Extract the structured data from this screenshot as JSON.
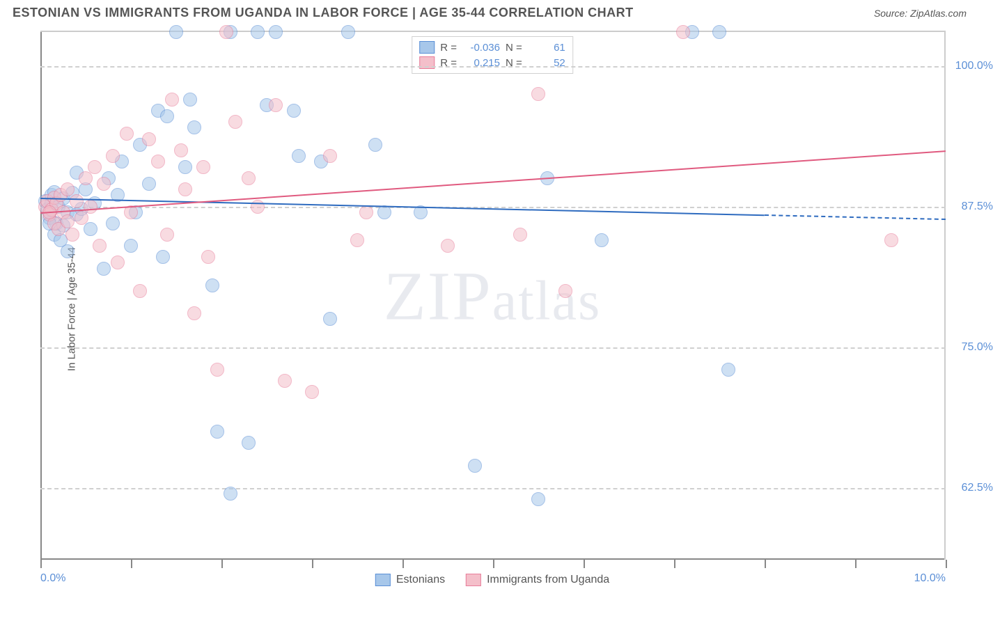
{
  "title": "ESTONIAN VS IMMIGRANTS FROM UGANDA IN LABOR FORCE | AGE 35-44 CORRELATION CHART",
  "source_label": "Source: ZipAtlas.com",
  "ylabel": "In Labor Force | Age 35-44",
  "watermark": "ZIPatlas",
  "chart": {
    "type": "scatter",
    "background_color": "#ffffff",
    "grid_color": "#d0d0d0",
    "axis_color": "#888888",
    "border_color": "#cccccc",
    "xlim": [
      0,
      10
    ],
    "ylim": [
      56,
      103
    ],
    "xticks": [
      0,
      1,
      2,
      3,
      4,
      5,
      6,
      7,
      8,
      9,
      10
    ],
    "xlabel_start": "0.0%",
    "xlabel_end": "10.0%",
    "yticks": [
      {
        "v": 62.5,
        "label": "62.5%"
      },
      {
        "v": 75.0,
        "label": "75.0%"
      },
      {
        "v": 87.5,
        "label": "87.5%"
      },
      {
        "v": 100.0,
        "label": "100.0%"
      }
    ],
    "tick_label_color": "#5b8fd6",
    "label_fontsize": 16,
    "marker_radius": 10,
    "marker_opacity": 0.55,
    "series": [
      {
        "name": "Estonians",
        "color_fill": "#a7c7ea",
        "color_stroke": "#5b8fd6",
        "R_label": "R =",
        "R": "-0.036",
        "N_label": "N =",
        "N": "61",
        "trend": {
          "x0": 0.0,
          "y0": 88.3,
          "x1": 8.0,
          "y1": 86.8,
          "color": "#2e6bbf",
          "dash_to": 10.0
        },
        "points": [
          [
            0.05,
            88.0
          ],
          [
            0.08,
            87.2
          ],
          [
            0.1,
            86.5
          ],
          [
            0.12,
            87.8
          ],
          [
            0.12,
            88.5
          ],
          [
            0.15,
            85.0
          ],
          [
            0.15,
            88.8
          ],
          [
            0.18,
            86.0
          ],
          [
            0.2,
            87.5
          ],
          [
            0.22,
            84.5
          ],
          [
            0.25,
            88.2
          ],
          [
            0.25,
            85.8
          ],
          [
            0.3,
            87.0
          ],
          [
            0.3,
            83.5
          ],
          [
            0.35,
            88.7
          ],
          [
            0.4,
            86.8
          ],
          [
            0.4,
            90.5
          ],
          [
            0.45,
            87.3
          ],
          [
            0.5,
            89.0
          ],
          [
            0.55,
            85.5
          ],
          [
            0.6,
            87.8
          ],
          [
            0.7,
            82.0
          ],
          [
            0.75,
            90.0
          ],
          [
            0.8,
            86.0
          ],
          [
            0.85,
            88.5
          ],
          [
            0.9,
            91.5
          ],
          [
            1.0,
            84.0
          ],
          [
            1.05,
            87.0
          ],
          [
            1.1,
            93.0
          ],
          [
            1.2,
            89.5
          ],
          [
            1.3,
            96.0
          ],
          [
            1.35,
            83.0
          ],
          [
            1.4,
            95.5
          ],
          [
            1.5,
            103.0
          ],
          [
            1.6,
            91.0
          ],
          [
            1.65,
            97.0
          ],
          [
            1.7,
            94.5
          ],
          [
            1.9,
            80.5
          ],
          [
            1.95,
            67.5
          ],
          [
            2.1,
            103.0
          ],
          [
            2.1,
            62.0
          ],
          [
            2.3,
            66.5
          ],
          [
            2.4,
            103.0
          ],
          [
            2.5,
            96.5
          ],
          [
            2.6,
            103.0
          ],
          [
            2.8,
            96.0
          ],
          [
            2.85,
            92.0
          ],
          [
            3.1,
            91.5
          ],
          [
            3.2,
            77.5
          ],
          [
            3.4,
            103.0
          ],
          [
            3.7,
            93.0
          ],
          [
            3.8,
            87.0
          ],
          [
            4.2,
            87.0
          ],
          [
            4.8,
            64.5
          ],
          [
            5.5,
            61.5
          ],
          [
            5.6,
            90.0
          ],
          [
            6.2,
            84.5
          ],
          [
            7.2,
            103.0
          ],
          [
            7.6,
            73.0
          ],
          [
            7.5,
            103.0
          ],
          [
            0.1,
            86.0
          ]
        ]
      },
      {
        "name": "Immigrants from Uganda",
        "color_fill": "#f4bfca",
        "color_stroke": "#e87d9a",
        "R_label": "R =",
        "R": "0.215",
        "N_label": "N =",
        "N": "52",
        "trend": {
          "x0": 0.0,
          "y0": 87.0,
          "x1": 10.0,
          "y1": 92.5,
          "color": "#e05a7f",
          "dash_to": null
        },
        "points": [
          [
            0.05,
            87.5
          ],
          [
            0.08,
            88.0
          ],
          [
            0.1,
            86.8
          ],
          [
            0.12,
            87.2
          ],
          [
            0.15,
            88.3
          ],
          [
            0.15,
            86.0
          ],
          [
            0.18,
            87.8
          ],
          [
            0.2,
            85.5
          ],
          [
            0.22,
            88.5
          ],
          [
            0.25,
            87.0
          ],
          [
            0.3,
            86.2
          ],
          [
            0.3,
            89.0
          ],
          [
            0.35,
            85.0
          ],
          [
            0.4,
            88.0
          ],
          [
            0.45,
            86.5
          ],
          [
            0.5,
            90.0
          ],
          [
            0.55,
            87.5
          ],
          [
            0.6,
            91.0
          ],
          [
            0.65,
            84.0
          ],
          [
            0.7,
            89.5
          ],
          [
            0.8,
            92.0
          ],
          [
            0.85,
            82.5
          ],
          [
            0.95,
            94.0
          ],
          [
            1.0,
            87.0
          ],
          [
            1.1,
            80.0
          ],
          [
            1.2,
            93.5
          ],
          [
            1.3,
            91.5
          ],
          [
            1.4,
            85.0
          ],
          [
            1.45,
            97.0
          ],
          [
            1.55,
            92.5
          ],
          [
            1.6,
            89.0
          ],
          [
            1.7,
            78.0
          ],
          [
            1.8,
            91.0
          ],
          [
            1.85,
            83.0
          ],
          [
            1.95,
            73.0
          ],
          [
            2.05,
            103.0
          ],
          [
            2.15,
            95.0
          ],
          [
            2.3,
            90.0
          ],
          [
            2.4,
            87.5
          ],
          [
            2.6,
            96.5
          ],
          [
            2.7,
            72.0
          ],
          [
            3.0,
            71.0
          ],
          [
            3.2,
            92.0
          ],
          [
            3.5,
            84.5
          ],
          [
            3.6,
            87.0
          ],
          [
            4.5,
            84.0
          ],
          [
            5.3,
            85.0
          ],
          [
            5.5,
            97.5
          ],
          [
            5.8,
            80.0
          ],
          [
            7.1,
            103.0
          ],
          [
            9.4,
            84.5
          ],
          [
            0.1,
            87.0
          ]
        ]
      }
    ]
  }
}
